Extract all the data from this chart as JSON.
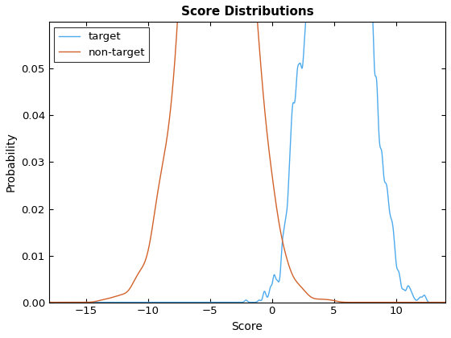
{
  "title": "Score Distributions",
  "xlabel": "Score",
  "ylabel": "Probability",
  "target_color": "#4DAAED",
  "nontarget_color": "#D2622A",
  "xlim": [
    -18,
    14
  ],
  "ylim": [
    0,
    0.06
  ],
  "yticks": [
    0,
    0.01,
    0.02,
    0.03,
    0.04,
    0.05
  ],
  "xticks": [
    -15,
    -10,
    -5,
    0,
    5,
    10
  ],
  "legend_labels": [
    "target",
    "non-target"
  ],
  "figsize": [
    5.6,
    4.2
  ],
  "dpi": 100,
  "target_bw": 0.06,
  "nontarget_bw": 0.18,
  "seed": 17
}
